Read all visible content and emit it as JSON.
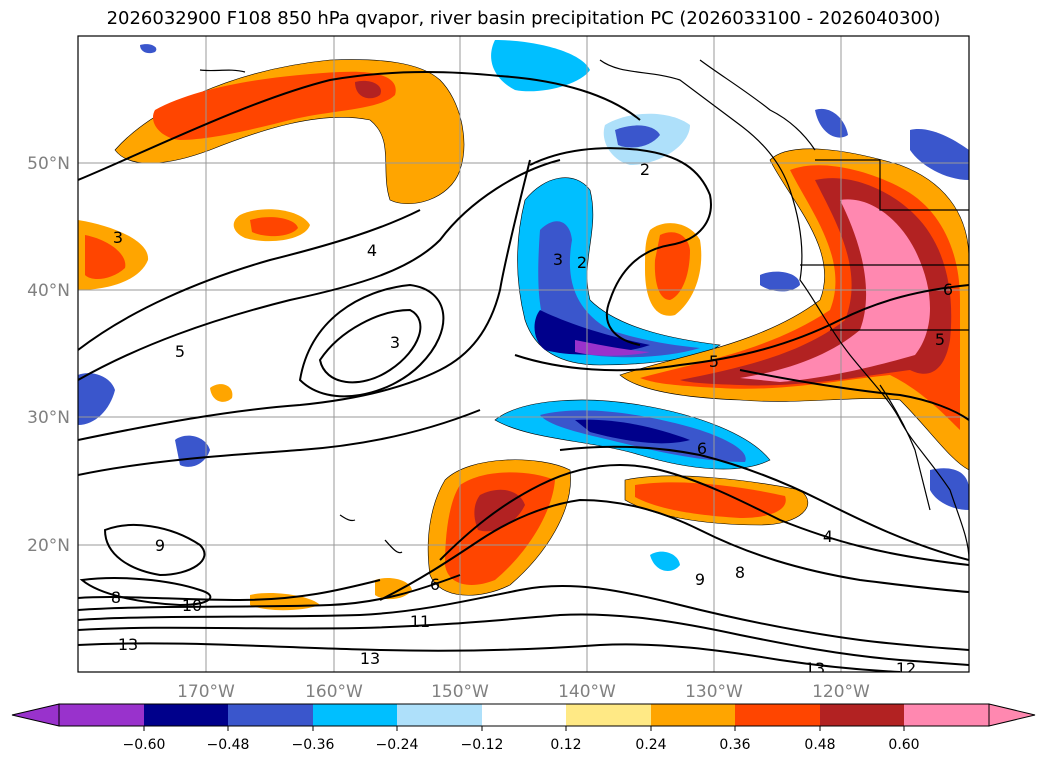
{
  "title": "2026032900 F108 850 hPa qvapor, river basin precipitation PC (2026033100 - 2026040300)",
  "lat_labels": [
    "50°N",
    "40°N",
    "30°N",
    "20°N"
  ],
  "lon_labels": [
    "170°W",
    "160°W",
    "150°W",
    "140°W",
    "130°W",
    "120°W"
  ],
  "colorbar": {
    "colors": [
      "#9932CC",
      "#00008B",
      "#3A56CC",
      "#00BFFF",
      "#AEE0FA",
      "#FFFFFF",
      "#FFE985",
      "#FFA500",
      "#FF4500",
      "#B22222",
      "#FF88B0"
    ],
    "tick_labels": [
      "−0.60",
      "−0.48",
      "−0.36",
      "−0.24",
      "−0.12",
      "0.12",
      "0.24",
      "0.36",
      "0.48",
      "0.60"
    ]
  },
  "contour_labels": [
    "2",
    "2",
    "3",
    "3",
    "3",
    "4",
    "4",
    "5",
    "5",
    "5",
    "6",
    "6",
    "6",
    "8",
    "8",
    "9",
    "9",
    "10",
    "11",
    "12",
    "13",
    "13",
    "13"
  ]
}
